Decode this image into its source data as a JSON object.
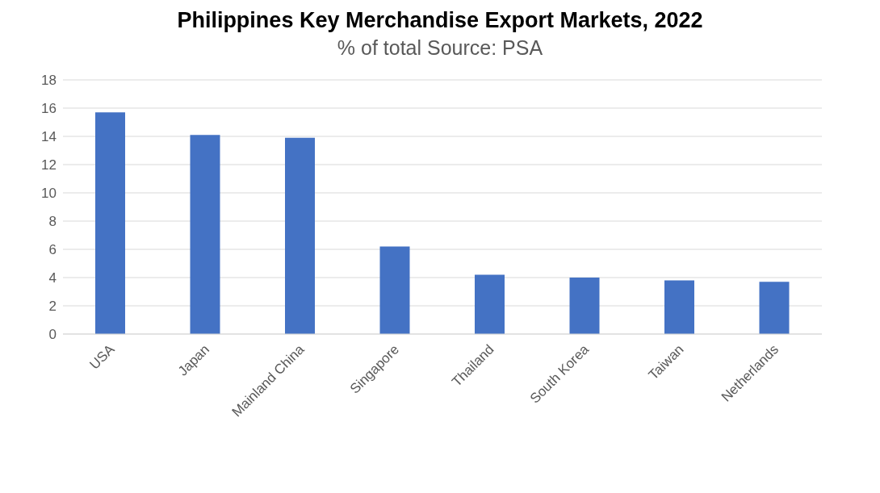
{
  "chart_data": {
    "type": "bar",
    "title": "Philippines Key Merchandise Export Markets, 2022",
    "subtitle": "% of total Source: PSA",
    "categories": [
      "USA",
      "Japan",
      "Mainland China",
      "Singapore",
      "Thailand",
      "South Korea",
      "Taiwan",
      "Netherlands"
    ],
    "values": [
      15.7,
      14.1,
      13.9,
      6.2,
      4.2,
      4.0,
      3.8,
      3.7
    ],
    "color": "#4472c4",
    "ylim": [
      0,
      18
    ],
    "yticks": [
      0,
      2,
      4,
      6,
      8,
      10,
      12,
      14,
      16,
      18
    ],
    "grid": "y"
  }
}
